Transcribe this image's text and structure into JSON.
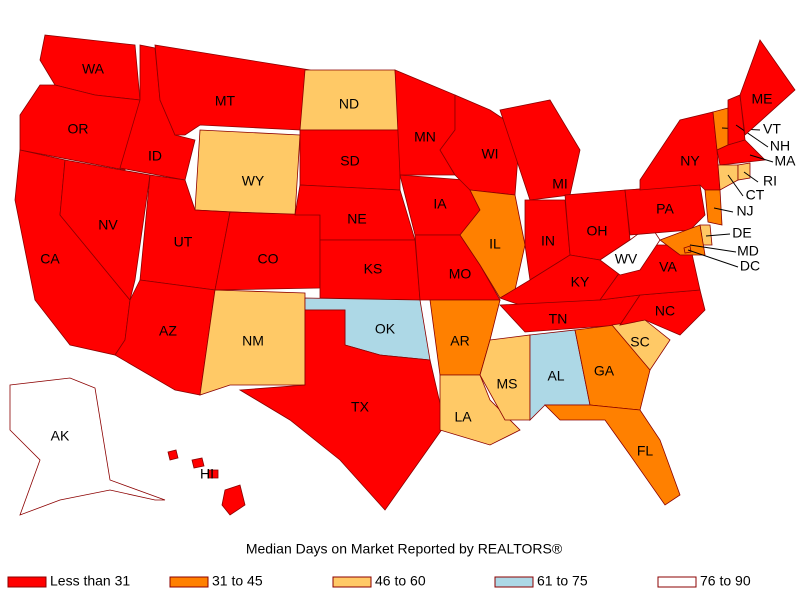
{
  "title": "Median Days on Market Reported by REALTORS®",
  "legend": [
    {
      "label": "Less than 31",
      "color": "#ff0000"
    },
    {
      "label": "31 to 45",
      "color": "#ff8000"
    },
    {
      "label": "46 to 60",
      "color": "#ffc966"
    },
    {
      "label": "61 to 75",
      "color": "#add8e6"
    },
    {
      "label": "76 to 90",
      "color": "#ffffff"
    }
  ],
  "states": [
    {
      "label": "WA",
      "class": 0
    },
    {
      "label": "OR",
      "class": 0
    },
    {
      "label": "CA",
      "class": 0
    },
    {
      "label": "NV",
      "class": 0
    },
    {
      "label": "ID",
      "class": 0
    },
    {
      "label": "MT",
      "class": 0
    },
    {
      "label": "WY",
      "class": 2
    },
    {
      "label": "UT",
      "class": 0
    },
    {
      "label": "AZ",
      "class": 0
    },
    {
      "label": "CO",
      "class": 0
    },
    {
      "label": "NM",
      "class": 2
    },
    {
      "label": "ND",
      "class": 2
    },
    {
      "label": "SD",
      "class": 0
    },
    {
      "label": "NE",
      "class": 0
    },
    {
      "label": "KS",
      "class": 0
    },
    {
      "label": "OK",
      "class": 3
    },
    {
      "label": "TX",
      "class": 0
    },
    {
      "label": "MN",
      "class": 0
    },
    {
      "label": "IA",
      "class": 0
    },
    {
      "label": "MO",
      "class": 0
    },
    {
      "label": "AR",
      "class": 1
    },
    {
      "label": "LA",
      "class": 2
    },
    {
      "label": "WI",
      "class": 0
    },
    {
      "label": "IL",
      "class": 1
    },
    {
      "label": "MI",
      "class": 0
    },
    {
      "label": "IN",
      "class": 0
    },
    {
      "label": "OH",
      "class": 0
    },
    {
      "label": "KY",
      "class": 0
    },
    {
      "label": "TN",
      "class": 0
    },
    {
      "label": "MS",
      "class": 2
    },
    {
      "label": "AL",
      "class": 3
    },
    {
      "label": "GA",
      "class": 1
    },
    {
      "label": "FL",
      "class": 1
    },
    {
      "label": "SC",
      "class": 2
    },
    {
      "label": "NC",
      "class": 0
    },
    {
      "label": "VA",
      "class": 0
    },
    {
      "label": "WV",
      "class": 4
    },
    {
      "label": "PA",
      "class": 0
    },
    {
      "label": "NY",
      "class": 0
    },
    {
      "label": "VT",
      "class": 1
    },
    {
      "label": "NH",
      "class": 0
    },
    {
      "label": "ME",
      "class": 0
    },
    {
      "label": "MA",
      "class": 0
    },
    {
      "label": "CT",
      "class": 2
    },
    {
      "label": "RI",
      "class": 2
    },
    {
      "label": "NJ",
      "class": 1
    },
    {
      "label": "DE",
      "class": 2
    },
    {
      "label": "MD",
      "class": 1
    },
    {
      "label": "DC",
      "class": 1
    },
    {
      "label": "AK",
      "class": 4
    },
    {
      "label": "HI",
      "class": 0
    }
  ]
}
